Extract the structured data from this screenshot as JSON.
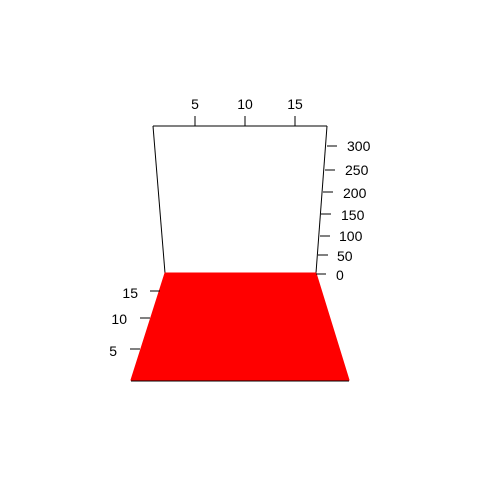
{
  "chart_data": {
    "type": "surface",
    "title": "",
    "xlabel": "",
    "ylabel": "",
    "zlabel": "",
    "x_ticks": [
      "5",
      "10",
      "15"
    ],
    "y_ticks": [
      "5",
      "10",
      "15"
    ],
    "z_ticks": [
      "0",
      "50",
      "100",
      "150",
      "200",
      "250",
      "300"
    ],
    "z_values_shown": "flat surface at z = 0 (approximately)",
    "surface_color": "#ff0000",
    "box_color": "#000000"
  }
}
